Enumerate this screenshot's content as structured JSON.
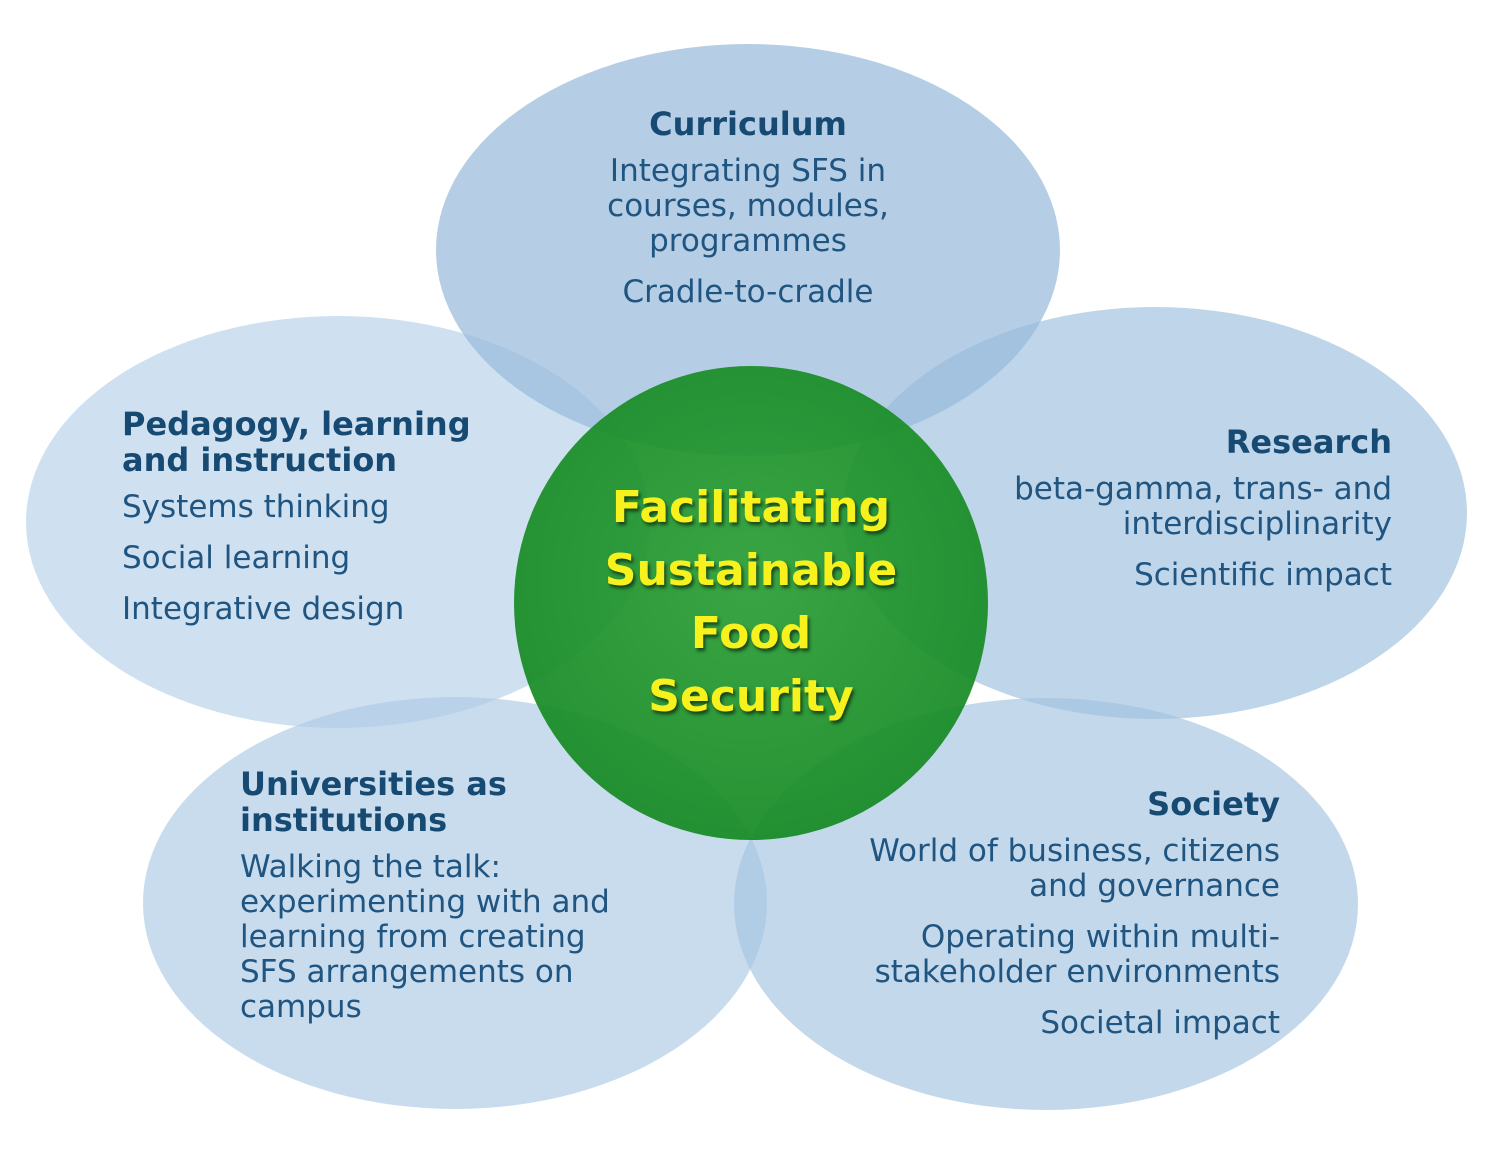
{
  "center": {
    "label": "Facilitating\nSustainable\nFood\nSecurity"
  },
  "petals": {
    "curriculum": {
      "title": "Curriculum",
      "items": [
        "Integrating SFS in\ncourses, modules,\nprogrammes",
        "Cradle-to-cradle"
      ]
    },
    "research": {
      "title": "Research",
      "items": [
        "beta-gamma, trans- and\ninterdisciplinarity",
        "Scientific impact"
      ]
    },
    "pedagogy": {
      "title": "Pedagogy, learning\nand instruction",
      "items": [
        "Systems thinking",
        "Social learning",
        "Integrative design"
      ]
    },
    "universities": {
      "title": "Universities as\ninstitutions",
      "items": [
        "Walking the talk:\nexperimenting with and\nlearning from creating\nSFS arrangements on\ncampus"
      ]
    },
    "society": {
      "title": "Society",
      "items": [
        "World of business, citizens\nand governance",
        "Operating within multi-\nstakeholder environments",
        "Societal impact"
      ]
    }
  },
  "colors": {
    "petal_fill": "#a9c8e2",
    "center_fill": "#1f8f2c",
    "center_text": "#f7f21e",
    "title_text": "#174a72",
    "body_text": "#1f5580"
  }
}
